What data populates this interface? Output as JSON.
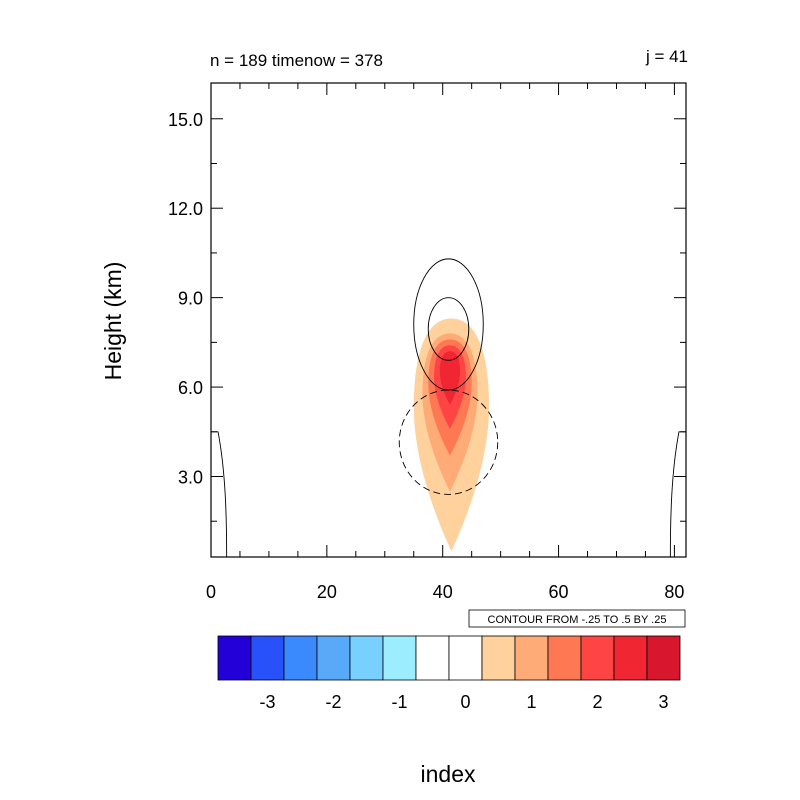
{
  "chart_data": {
    "type": "contour",
    "title_left": "n = 189 timenow = 378",
    "title_right": "j = 41",
    "xlabel": "index",
    "ylabel": "Height (km)",
    "xlim": [
      0,
      82
    ],
    "ylim": [
      0.3,
      16.2
    ],
    "x_ticks": [
      0,
      20,
      40,
      60,
      80
    ],
    "y_ticks": [
      3.0,
      6.0,
      9.0,
      12.0,
      15.0
    ],
    "x_tick_labels": [
      "0",
      "20",
      "40",
      "60",
      "80"
    ],
    "y_tick_labels": [
      "3.0",
      "6.0",
      "9.0",
      "12.0",
      "15.0"
    ],
    "info_label": "CONTOUR FROM -.25 TO .5 BY .25",
    "colorbar": {
      "colors": [
        "#2300d8",
        "#2951fa",
        "#3a8afd",
        "#59a9f9",
        "#78d0ff",
        "#9ceeff",
        "#ffffff",
        "#ffffff",
        "#ffd29d",
        "#ffab77",
        "#ff7854",
        "#ff4444",
        "#f02632",
        "#d8172e"
      ],
      "tick_values": [
        "-3",
        "-2",
        "-1",
        "0",
        "1",
        "2",
        "3"
      ]
    },
    "filled_regions": [
      {
        "level": "0.5-1",
        "color": "#ffd29d",
        "x_range": [
          35,
          48
        ],
        "z_range": [
          0.5,
          8.3
        ]
      },
      {
        "level": "1-1.5",
        "color": "#ffab77",
        "x_range": [
          36.5,
          46
        ],
        "z_range": [
          2.5,
          7.8
        ]
      },
      {
        "level": "1.5-2",
        "color": "#ff7854",
        "x_range": [
          37.5,
          45
        ],
        "z_range": [
          3.7,
          7.6
        ]
      },
      {
        "level": "2-2.5",
        "color": "#ff4444",
        "x_range": [
          38.5,
          44
        ],
        "z_range": [
          4.6,
          7.4
        ]
      },
      {
        "level": "2.5-3",
        "color": "#f02632",
        "x_range": [
          39.5,
          43
        ],
        "z_range": [
          5.4,
          7.2
        ]
      }
    ],
    "contour_lines": [
      {
        "value": 0.25,
        "style": "solid",
        "center": [
          41,
          8.2
        ],
        "x_range": [
          35,
          47
        ],
        "z_range": [
          5.9,
          10.3
        ]
      },
      {
        "value": 0.5,
        "style": "solid",
        "center": [
          41,
          7.9
        ],
        "x_range": [
          37.5,
          44.5
        ],
        "z_range": [
          6.9,
          9.0
        ]
      },
      {
        "value": -0.25,
        "style": "dashed",
        "center": [
          41,
          4.4
        ],
        "x_range": [
          33,
          50
        ],
        "z_range": [
          2.4,
          5.9
        ]
      }
    ],
    "edge_contours": [
      {
        "value": 0.25,
        "style": "solid",
        "x_range": [
          0,
          2.7
        ],
        "z_range": [
          0.3,
          4.5
        ]
      },
      {
        "value": 0.25,
        "style": "solid",
        "x_range": [
          79.3,
          82
        ],
        "z_range": [
          0.3,
          4.5
        ]
      }
    ]
  }
}
